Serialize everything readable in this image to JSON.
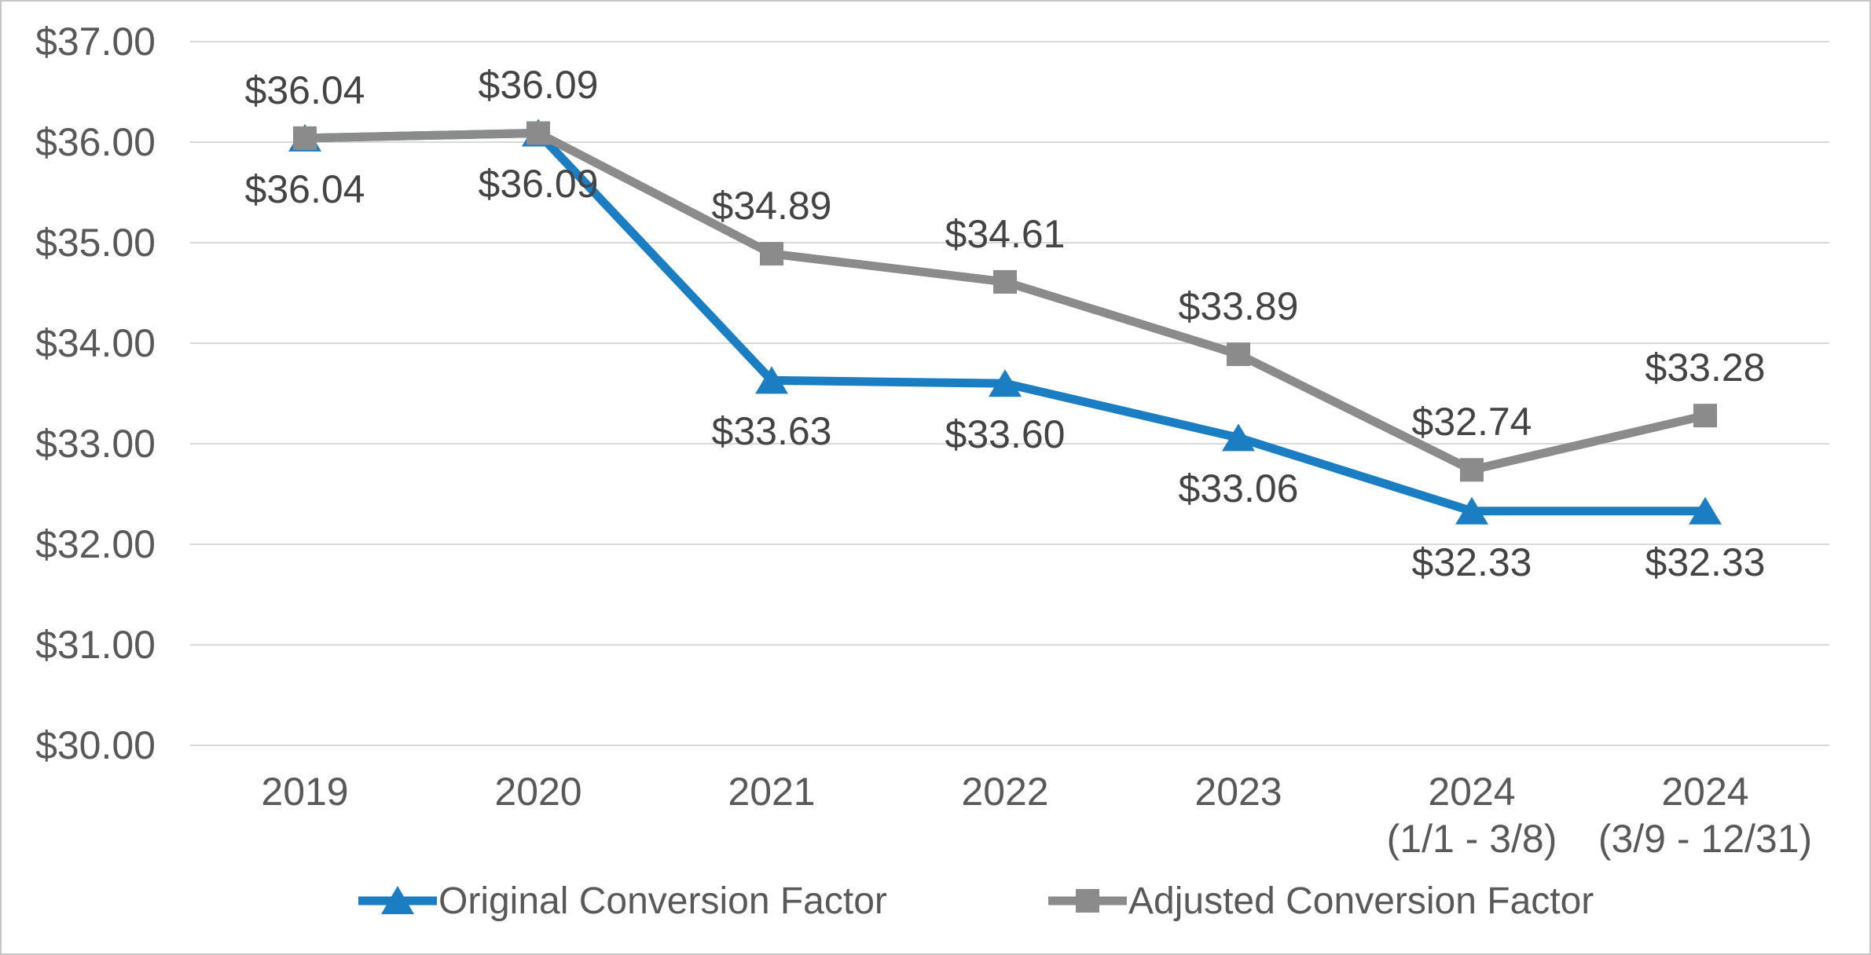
{
  "chart_data": {
    "type": "line",
    "title": "",
    "categories": [
      [
        "2019"
      ],
      [
        "2020"
      ],
      [
        "2021"
      ],
      [
        "2022"
      ],
      [
        "2023"
      ],
      [
        "2024",
        "(1/1 - 3/8)"
      ],
      [
        "2024",
        "(3/9 - 12/31)"
      ]
    ],
    "series": [
      {
        "name": "Original Conversion Factor",
        "marker": "triangle",
        "color": "#1b7ec3",
        "values": [
          36.04,
          36.09,
          33.63,
          33.6,
          33.06,
          32.33,
          32.33
        ],
        "data_labels": [
          "$36.04",
          "$36.09",
          "$33.63",
          "$33.60",
          "$33.06",
          "$32.33",
          "$32.33"
        ],
        "label_position": "below"
      },
      {
        "name": "Adjusted Conversion Factor",
        "marker": "square",
        "color": "#8b8b8b",
        "values": [
          36.04,
          36.09,
          34.89,
          34.61,
          33.89,
          32.74,
          33.28
        ],
        "data_labels": [
          "$36.04",
          "$36.09",
          "$34.89",
          "$34.61",
          "$33.89",
          "$32.74",
          "$33.28"
        ],
        "label_position": "above"
      }
    ],
    "y_axis": {
      "tick_labels": [
        "$37.00",
        "$36.00",
        "$35.00",
        "$34.00",
        "$33.00",
        "$32.00",
        "$31.00",
        "$30.00"
      ],
      "tick_values": [
        37,
        36,
        35,
        34,
        33,
        32,
        31,
        30
      ],
      "min": 30,
      "max": 37,
      "step": 1
    },
    "grid": true,
    "legend_position": "bottom",
    "colors": {
      "gridline": "#d9d9d9",
      "axis_text": "#595959",
      "data_label_text": "#444444",
      "background": "#ffffff",
      "border": "#c6c6c6"
    }
  }
}
